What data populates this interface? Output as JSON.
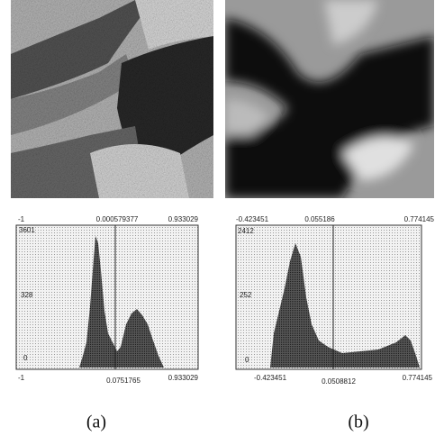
{
  "figures": [
    {
      "caption": "(a)",
      "histogram": {
        "top_labels": [
          "-1",
          "0.000579377",
          "0.933029"
        ],
        "left_labels": [
          "3601",
          "328",
          "0"
        ],
        "bottom_labels": [
          "-1",
          "0.0751765",
          "0.933029"
        ]
      }
    },
    {
      "caption": "(b)",
      "histogram": {
        "top_labels": [
          "-0.423451",
          "0.055186",
          "0.774145"
        ],
        "left_labels": [
          "2412",
          "252",
          "0"
        ],
        "bottom_labels": [
          "-0.423451",
          "0.0508812",
          "0.774145"
        ]
      }
    }
  ]
}
